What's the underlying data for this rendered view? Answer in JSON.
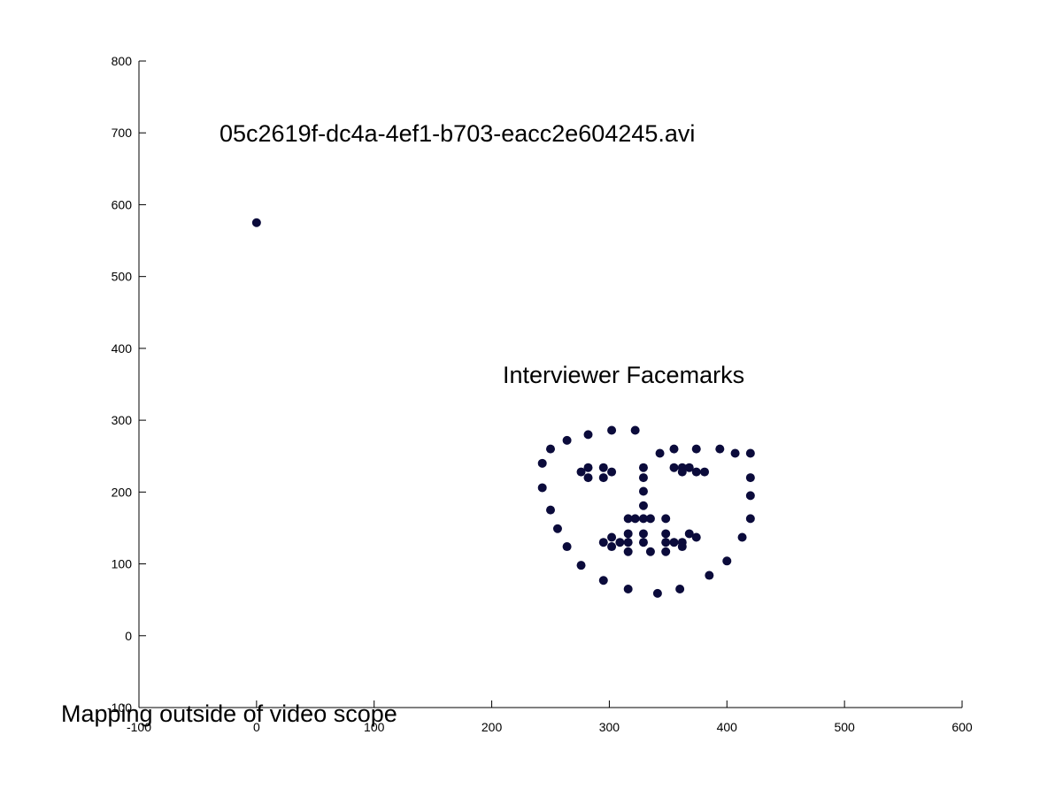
{
  "chart_data": {
    "type": "scatter",
    "title": "",
    "xlabel": "",
    "ylabel": "",
    "xlim": [
      -100,
      600
    ],
    "ylim": [
      -100,
      800
    ],
    "xticks": [
      -100,
      0,
      100,
      200,
      300,
      400,
      500,
      600
    ],
    "yticks": [
      -100,
      0,
      100,
      200,
      300,
      400,
      500,
      600,
      700,
      800
    ],
    "xtick_labels": [
      "-100",
      "0",
      "100",
      "200",
      "300",
      "400",
      "500",
      "600"
    ],
    "ytick_labels": [
      "-100",
      "0",
      "100",
      "200",
      "300",
      "400",
      "500",
      "600",
      "700",
      "800"
    ],
    "grid": false,
    "marker_color": "#0b0b3b",
    "annotations": {
      "filename": "05c2619f-dc4a-4ef1-b703-eacc2e604245.avi",
      "label": "Interviewer Facemarks",
      "outside": "Mapping outside of video scope"
    },
    "series": [
      {
        "points": [
          [
            0,
            575
          ],
          [
            243,
            240
          ],
          [
            243,
            206
          ],
          [
            250,
            175
          ],
          [
            256,
            149
          ],
          [
            264,
            124
          ],
          [
            276,
            98
          ],
          [
            295,
            77
          ],
          [
            316,
            65
          ],
          [
            341,
            59
          ],
          [
            360,
            65
          ],
          [
            385,
            84
          ],
          [
            400,
            104
          ],
          [
            413,
            137
          ],
          [
            420,
            163
          ],
          [
            420,
            195
          ],
          [
            420,
            220
          ],
          [
            420,
            254
          ],
          [
            250,
            260
          ],
          [
            264,
            272
          ],
          [
            282,
            280
          ],
          [
            302,
            286
          ],
          [
            322,
            286
          ],
          [
            343,
            254
          ],
          [
            355,
            260
          ],
          [
            374,
            260
          ],
          [
            394,
            260
          ],
          [
            407,
            254
          ],
          [
            329,
            234
          ],
          [
            329,
            220
          ],
          [
            329,
            201
          ],
          [
            329,
            181
          ],
          [
            316,
            163
          ],
          [
            322,
            163
          ],
          [
            329,
            163
          ],
          [
            335,
            163
          ],
          [
            348,
            163
          ],
          [
            276,
            228
          ],
          [
            282,
            234
          ],
          [
            295,
            234
          ],
          [
            302,
            228
          ],
          [
            295,
            220
          ],
          [
            282,
            220
          ],
          [
            355,
            234
          ],
          [
            362,
            234
          ],
          [
            368,
            234
          ],
          [
            374,
            228
          ],
          [
            381,
            228
          ],
          [
            362,
            228
          ],
          [
            295,
            130
          ],
          [
            302,
            137
          ],
          [
            309,
            130
          ],
          [
            316,
            142
          ],
          [
            329,
            142
          ],
          [
            348,
            142
          ],
          [
            368,
            142
          ],
          [
            374,
            137
          ],
          [
            362,
            130
          ],
          [
            355,
            130
          ],
          [
            348,
            130
          ],
          [
            329,
            130
          ],
          [
            316,
            130
          ],
          [
            302,
            124
          ],
          [
            316,
            117
          ],
          [
            335,
            117
          ],
          [
            348,
            117
          ],
          [
            362,
            124
          ]
        ]
      }
    ]
  }
}
